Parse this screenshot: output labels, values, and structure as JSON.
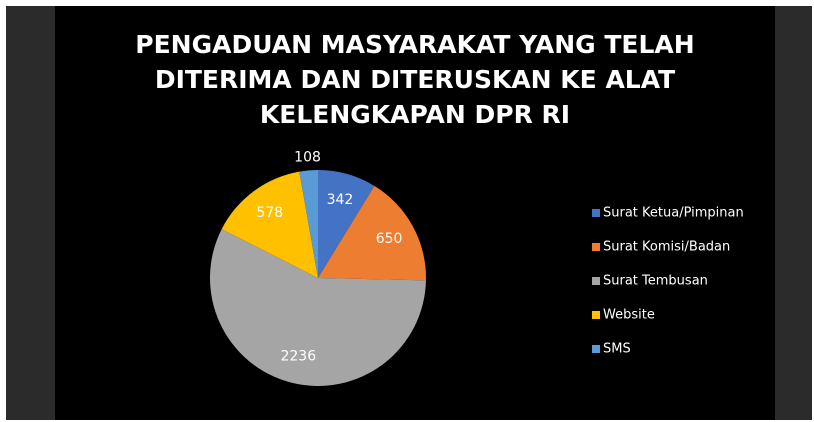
{
  "chart_data": {
    "type": "pie",
    "title": [
      "PENGADUAN MASYARAKAT YANG TELAH",
      "DITERIMA DAN DITERUSKAN KE ALAT",
      "KELENGKAPAN DPR RI"
    ],
    "categories": [
      "Surat Ketua/Pimpinan",
      "Surat Komisi/Badan",
      "Surat Tembusan",
      "Website",
      "SMS"
    ],
    "values": [
      342,
      650,
      2236,
      578,
      108
    ],
    "colors": [
      "#4472c4",
      "#ed7d31",
      "#a5a5a5",
      "#ffc000",
      "#5b9bd5"
    ],
    "legend": "right"
  }
}
